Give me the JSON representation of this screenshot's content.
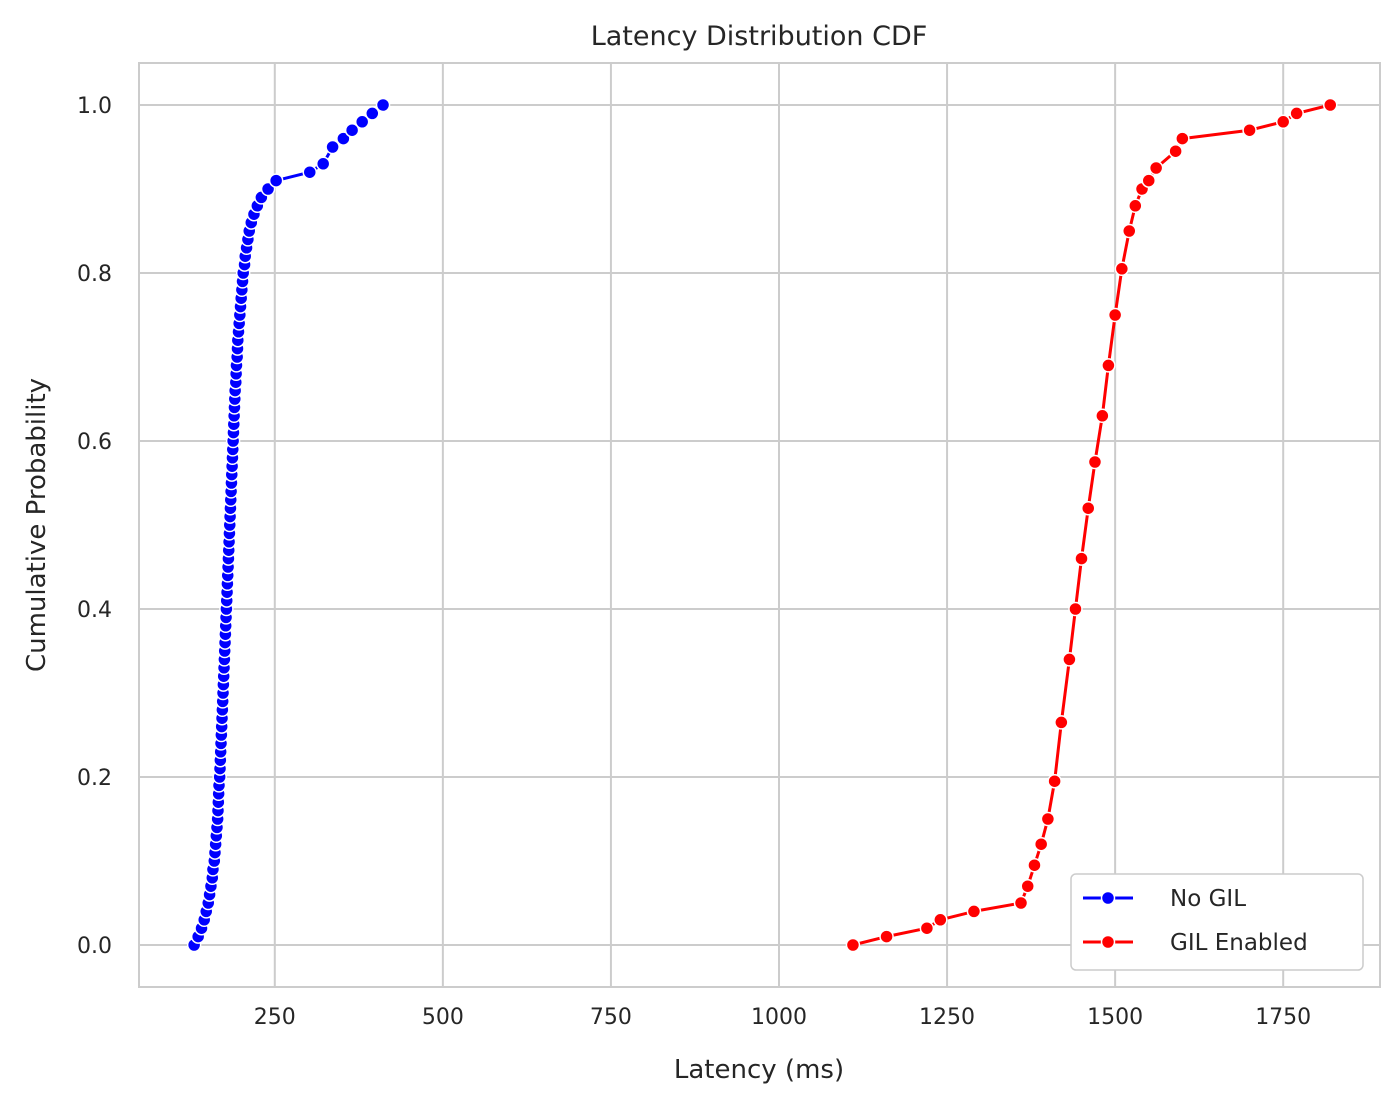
{
  "chart_data": {
    "type": "line",
    "title": "Latency Distribution CDF",
    "xlabel": "Latency (ms)",
    "ylabel": "Cumulative Probability",
    "xlim": [
      48,
      1894
    ],
    "ylim": [
      -0.05,
      1.05
    ],
    "xticks": [
      250,
      500,
      750,
      1000,
      1250,
      1500,
      1750
    ],
    "yticks": [
      0.0,
      0.2,
      0.4,
      0.6,
      0.8,
      1.0
    ],
    "xtick_labels": [
      "250",
      "500",
      "750",
      "1000",
      "1250",
      "1500",
      "1750"
    ],
    "ytick_labels": [
      "0.0",
      "0.2",
      "0.4",
      "0.6",
      "0.8",
      "1.0"
    ],
    "grid": true,
    "legend_position": "bottom-right",
    "series": [
      {
        "name": "No GIL",
        "color": "#0000ff",
        "marker": "circle",
        "points": [
          [
            130,
            0.0
          ],
          [
            136,
            0.01
          ],
          [
            141,
            0.02
          ],
          [
            145,
            0.03
          ],
          [
            148,
            0.04
          ],
          [
            151,
            0.05
          ],
          [
            153,
            0.06
          ],
          [
            155,
            0.07
          ],
          [
            157,
            0.08
          ],
          [
            158,
            0.09
          ],
          [
            160,
            0.1
          ],
          [
            161,
            0.11
          ],
          [
            162,
            0.12
          ],
          [
            163,
            0.13
          ],
          [
            164,
            0.14
          ],
          [
            165,
            0.15
          ],
          [
            165.5,
            0.16
          ],
          [
            166,
            0.17
          ],
          [
            166.5,
            0.18
          ],
          [
            167,
            0.19
          ],
          [
            168,
            0.2
          ],
          [
            168.5,
            0.21
          ],
          [
            169,
            0.22
          ],
          [
            169.5,
            0.23
          ],
          [
            170,
            0.24
          ],
          [
            170.5,
            0.25
          ],
          [
            171,
            0.26
          ],
          [
            171.5,
            0.27
          ],
          [
            172,
            0.28
          ],
          [
            172.5,
            0.29
          ],
          [
            173,
            0.3
          ],
          [
            173.5,
            0.31
          ],
          [
            174,
            0.32
          ],
          [
            174.5,
            0.33
          ],
          [
            175,
            0.34
          ],
          [
            175.5,
            0.35
          ],
          [
            176,
            0.36
          ],
          [
            176.5,
            0.37
          ],
          [
            177,
            0.38
          ],
          [
            177.5,
            0.39
          ],
          [
            178,
            0.4
          ],
          [
            178.5,
            0.41
          ],
          [
            179,
            0.42
          ],
          [
            179.5,
            0.43
          ],
          [
            180,
            0.44
          ],
          [
            180.5,
            0.45
          ],
          [
            181,
            0.46
          ],
          [
            181.5,
            0.47
          ],
          [
            182,
            0.48
          ],
          [
            182.5,
            0.49
          ],
          [
            183,
            0.5
          ],
          [
            183.5,
            0.51
          ],
          [
            184,
            0.52
          ],
          [
            184.5,
            0.53
          ],
          [
            185,
            0.54
          ],
          [
            185.5,
            0.55
          ],
          [
            186,
            0.56
          ],
          [
            186.5,
            0.57
          ],
          [
            187,
            0.58
          ],
          [
            187.5,
            0.59
          ],
          [
            188,
            0.6
          ],
          [
            188.5,
            0.61
          ],
          [
            189,
            0.62
          ],
          [
            189.5,
            0.63
          ],
          [
            190,
            0.64
          ],
          [
            190.5,
            0.65
          ],
          [
            191,
            0.66
          ],
          [
            192,
            0.67
          ],
          [
            192.5,
            0.68
          ],
          [
            193,
            0.69
          ],
          [
            194,
            0.7
          ],
          [
            194.5,
            0.71
          ],
          [
            195,
            0.72
          ],
          [
            196,
            0.73
          ],
          [
            197,
            0.74
          ],
          [
            198,
            0.75
          ],
          [
            199,
            0.76
          ],
          [
            200,
            0.77
          ],
          [
            201,
            0.78
          ],
          [
            202,
            0.79
          ],
          [
            203,
            0.8
          ],
          [
            205,
            0.81
          ],
          [
            206,
            0.82
          ],
          [
            208,
            0.83
          ],
          [
            210,
            0.84
          ],
          [
            212,
            0.85
          ],
          [
            215,
            0.86
          ],
          [
            219,
            0.87
          ],
          [
            224,
            0.88
          ],
          [
            230,
            0.89
          ],
          [
            240,
            0.9
          ],
          [
            252,
            0.91
          ],
          [
            302,
            0.92
          ],
          [
            322,
            0.93
          ],
          [
            336,
            0.95
          ],
          [
            352,
            0.96
          ],
          [
            365,
            0.97
          ],
          [
            380,
            0.98
          ],
          [
            395,
            0.99
          ],
          [
            411,
            1.0
          ]
        ]
      },
      {
        "name": "GIL Enabled",
        "color": "#ff0000",
        "marker": "circle",
        "points": [
          [
            1110,
            0.0
          ],
          [
            1160,
            0.01
          ],
          [
            1220,
            0.02
          ],
          [
            1240,
            0.03
          ],
          [
            1290,
            0.04
          ],
          [
            1360,
            0.05
          ],
          [
            1370,
            0.07
          ],
          [
            1380,
            0.095
          ],
          [
            1390,
            0.12
          ],
          [
            1400,
            0.15
          ],
          [
            1410,
            0.195
          ],
          [
            1420,
            0.265
          ],
          [
            1432,
            0.34
          ],
          [
            1441,
            0.4
          ],
          [
            1450,
            0.46
          ],
          [
            1460,
            0.52
          ],
          [
            1470,
            0.575
          ],
          [
            1481,
            0.63
          ],
          [
            1490,
            0.69
          ],
          [
            1500,
            0.75
          ],
          [
            1510,
            0.805
          ],
          [
            1521,
            0.85
          ],
          [
            1530,
            0.88
          ],
          [
            1540,
            0.9
          ],
          [
            1550,
            0.91
          ],
          [
            1561,
            0.925
          ],
          [
            1590,
            0.945
          ],
          [
            1600,
            0.96
          ],
          [
            1700,
            0.97
          ],
          [
            1750,
            0.98
          ],
          [
            1770,
            0.99
          ],
          [
            1820,
            1.0
          ]
        ]
      }
    ]
  }
}
